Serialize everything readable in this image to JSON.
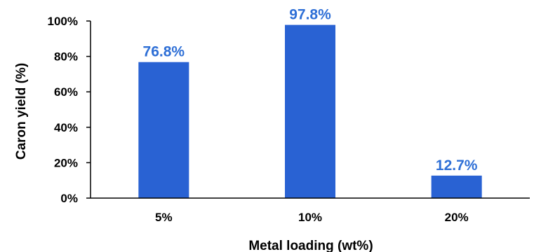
{
  "chart_data": {
    "type": "bar",
    "title": "",
    "xlabel": "Metal loading (wt%)",
    "ylabel": "Caron yield (%)",
    "categories": [
      "5%",
      "10%",
      "20%"
    ],
    "values": [
      76.8,
      97.8,
      12.7
    ],
    "data_labels": [
      "76.8%",
      "97.8%",
      "12.7%"
    ],
    "ylim": [
      0,
      100
    ],
    "yticks": [
      0,
      20,
      40,
      60,
      80,
      100
    ],
    "ytick_labels": [
      "0%",
      "20%",
      "40%",
      "60%",
      "80%",
      "100%"
    ],
    "grid": false,
    "legend": "none",
    "bar_color": "#2962d3",
    "data_label_color": "#2e6fd6",
    "axis_color": "#000000"
  }
}
